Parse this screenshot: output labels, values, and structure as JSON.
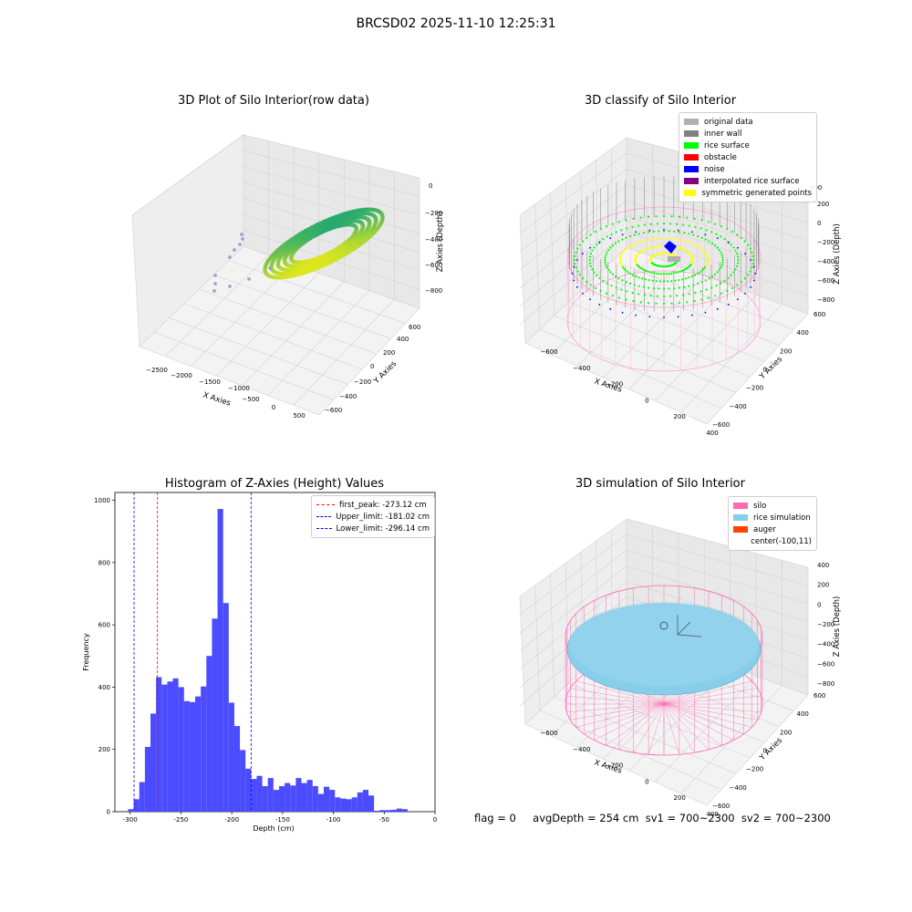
{
  "suptitle": "BRCSD02 2025-11-10 12:25:31",
  "colors": {
    "original_data": "#b0b0b0",
    "inner_wall": "#808080",
    "rice_surface": "#00ff00",
    "obstacle": "#ff0000",
    "noise": "#0000ff",
    "interpolated_rice_surface": "#800080",
    "symmetric_generated_points": "#ffff00",
    "silo": "#ff69b4",
    "rice_simulation": "#87ceeb",
    "auger": "#ff4500",
    "hist_bar": "#4b4bff",
    "first_peak_line": "#ff0000",
    "limit_line": "#0000ff"
  },
  "footer": {
    "flag": "flag = 0",
    "avg": "avgDepth = 254 cm  sv1 = 700~2300  sv2 = 700~2300"
  },
  "chart_data": [
    {
      "type": "scatter",
      "title": "3D Plot of Silo Interior(row data)",
      "xlabel": "X Axies",
      "ylabel": "Y Axies",
      "zlabel": "Z Axies (Depth)",
      "x_ticks": [
        "−2500",
        "−2000",
        "−1500",
        "−1000",
        "−500",
        "0",
        "500"
      ],
      "y_ticks": [
        "−600",
        "−400",
        "−200",
        "0",
        "200",
        "400",
        "600"
      ],
      "z_ticks": [
        "0",
        "−200",
        "−400",
        "−600",
        "−800"
      ]
    },
    {
      "type": "scatter",
      "title": "3D classify of Silo Interior",
      "xlabel": "X Axies",
      "ylabel": "Y Axies",
      "zlabel": "Z Axies (Depth)",
      "x_ticks": [
        "−600",
        "−400",
        "−200",
        "0",
        "200",
        "400"
      ],
      "y_ticks": [
        "−600",
        "−400",
        "−200",
        "0",
        "200",
        "400",
        "600"
      ],
      "z_ticks": [
        "200",
        "0",
        "−200",
        "−400",
        "−600",
        "−800"
      ],
      "z_top": "400",
      "legend": [
        "original data",
        "inner wall",
        "rice surface",
        "obstacle",
        "noise",
        "interpolated rice surface",
        "symmetric generated points"
      ]
    },
    {
      "type": "bar",
      "title": "Histogram of Z-Axies (Height) Values",
      "xlabel": "Depth (cm)",
      "ylabel": "Frequency",
      "xlim": [
        -315,
        0
      ],
      "ylim": [
        0,
        1025
      ],
      "x_ticks": [
        -300,
        -250,
        -200,
        -150,
        -100,
        -50,
        0
      ],
      "y_ticks": [
        0,
        200,
        400,
        600,
        800,
        1000
      ],
      "bin_start": -302,
      "bin_width": 5.5,
      "values": [
        8,
        40,
        95,
        208,
        315,
        432,
        408,
        418,
        428,
        400,
        355,
        352,
        370,
        402,
        500,
        620,
        972,
        670,
        350,
        275,
        198,
        138,
        105,
        115,
        82,
        108,
        70,
        82,
        92,
        84,
        108,
        92,
        102,
        82,
        57,
        80,
        70,
        46,
        42,
        40,
        46,
        62,
        70,
        52,
        3,
        5,
        5,
        6,
        10,
        8
      ],
      "lines": [
        {
          "label": "first_peak: -273.12 cm",
          "x": -273.12,
          "color": "#ff0000"
        },
        {
          "label": "Upper_limit: -181.02 cm",
          "x": -181.02,
          "color": "#0000ff"
        },
        {
          "label": "Lower_limit: -296.14 cm",
          "x": -296.14,
          "color": "#0000ff"
        }
      ]
    },
    {
      "type": "scatter",
      "title": "3D simulation of Silo Interior",
      "xlabel": "X Axies",
      "ylabel": "Y Axies",
      "zlabel": "Z Axies (Depth)",
      "x_ticks": [
        "−600",
        "−400",
        "−200",
        "0",
        "200",
        "400"
      ],
      "y_ticks": [
        "−600",
        "−400",
        "−200",
        "0",
        "200",
        "400",
        "600"
      ],
      "z_ticks": [
        "400",
        "200",
        "0",
        "−200",
        "−400",
        "−600",
        "−800"
      ],
      "legend": [
        "silo",
        "rice simulation",
        "auger",
        "center(-100,11)"
      ]
    }
  ]
}
